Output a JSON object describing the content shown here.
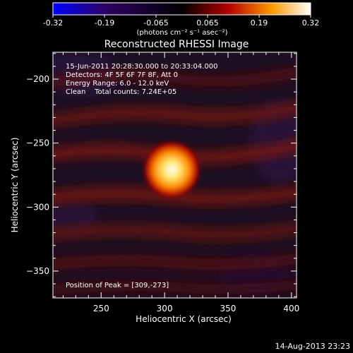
{
  "colorbar": {
    "tick_labels": [
      "-0.32",
      "-0.19",
      "-0.065",
      "0.065",
      "0.19",
      "0.32"
    ],
    "units": "(photons cm⁻² s⁻¹ asec⁻²)"
  },
  "title": "Reconstructed RHESSI Image",
  "annotations": {
    "time_range": "15-Jun-2011 20:28:30.000 to 20:33:04.000",
    "detectors": "Detectors: 4F 5F 6F 7F 8F, Att 0",
    "energy_range": "Energy Range: 6.0 - 12.0 keV",
    "method_counts": "Clean    Total counts: 7.24E+05",
    "peak_position": "Position of Peak = [309,-273]"
  },
  "footer_timestamp": "14-Aug-2013 23:23",
  "chart_data": {
    "type": "heatmap",
    "title": "Reconstructed RHESSI Image",
    "xlabel": "Heliocentric X (arcsec)",
    "ylabel": "Heliocentric Y (arcsec)",
    "xlim": [
      212,
      404
    ],
    "ylim": [
      -371,
      -179
    ],
    "x_ticks": [
      250,
      300,
      350,
      400
    ],
    "y_ticks": [
      -200,
      -250,
      -300,
      -350
    ],
    "x_tick_labels": [
      "250",
      "300",
      "350",
      "400"
    ],
    "y_tick_labels": [
      "−200",
      "−250",
      "−300",
      "−350"
    ],
    "colorscale": {
      "min": -0.32,
      "max": 0.32
    },
    "peak": {
      "x": 309,
      "y": -273,
      "value": 0.32
    },
    "colormap": [
      "#0000ff",
      "#2d0066",
      "#000000",
      "#b30000",
      "#ff9900",
      "#ffffff"
    ]
  }
}
